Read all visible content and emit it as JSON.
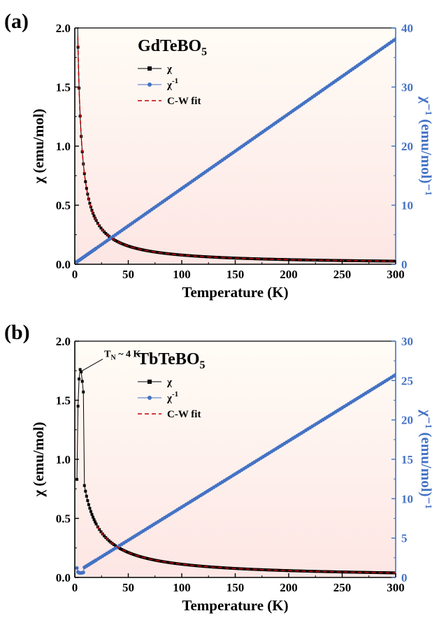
{
  "panels": [
    {
      "label": "(a)",
      "compound": {
        "base": "GdTeBO",
        "sub": "5"
      },
      "annotation": null,
      "chart_data": {
        "type": "scatter",
        "xlabel": "Temperature (K)",
        "ylabel_left": "χ  (emu/mol)",
        "ylabel_right": "χ⁻¹ (emu/mol)⁻¹",
        "xlim": [
          0,
          300
        ],
        "ylim_left": [
          0,
          2.0
        ],
        "ylim_right": [
          0,
          40
        ],
        "xticks": [
          0,
          50,
          100,
          150,
          200,
          250,
          300
        ],
        "yticks_left": [
          0.0,
          0.5,
          1.0,
          1.5,
          2.0
        ],
        "yticks_right": [
          0,
          10,
          20,
          30,
          40
        ],
        "legend": [
          {
            "label": "χ",
            "sup": "",
            "style": "black-square-line"
          },
          {
            "label": "χ",
            "sup": "-1",
            "style": "blue-circle-line"
          },
          {
            "label": "C-W fit",
            "sup": "",
            "style": "red-dash"
          }
        ],
        "series": [
          {
            "name": "χ",
            "axis": "left",
            "color": "#000000",
            "marker": "square",
            "model": {
              "form": "C/(T-θ)",
              "C": 7.9,
              "theta": -1.3
            },
            "t_start": 2,
            "t_end": 300
          },
          {
            "name": "χ⁻¹",
            "axis": "right",
            "color": "#4472C4",
            "marker": "circle",
            "model": {
              "form": "(T-θ)/C",
              "C": 7.9,
              "theta": -1.3
            },
            "t_start": 2,
            "t_end": 300
          },
          {
            "name": "C-W fit",
            "axis": "left",
            "color": "#C00000",
            "marker": "none",
            "model": {
              "form": "C/(T-θ)",
              "C": 7.9,
              "theta": -1.3
            },
            "t_start": 2.8,
            "t_end": 300
          }
        ]
      }
    },
    {
      "label": "(b)",
      "compound": {
        "base": "TbTeBO",
        "sub": "5"
      },
      "annotation": {
        "text": "T",
        "sub": "N",
        "rest": " ~ 4 K",
        "x": 4,
        "y": 1.76
      },
      "chart_data": {
        "type": "scatter",
        "xlabel": "Temperature (K)",
        "ylabel_left": "χ  (emu/mol)",
        "ylabel_right": "χ⁻¹ (emu/mol)⁻¹",
        "xlim": [
          0,
          300
        ],
        "ylim_left": [
          0,
          2.0
        ],
        "ylim_right": [
          0,
          30
        ],
        "xticks": [
          0,
          50,
          100,
          150,
          200,
          250,
          300
        ],
        "yticks_left": [
          0.0,
          0.5,
          1.0,
          1.5,
          2.0
        ],
        "yticks_right": [
          0,
          5,
          10,
          15,
          20,
          25,
          30
        ],
        "legend": [
          {
            "label": "χ",
            "sup": "",
            "style": "black-square-line"
          },
          {
            "label": "χ",
            "sup": "-1",
            "style": "blue-circle-line"
          },
          {
            "label": "C-W fit",
            "sup": "",
            "style": "red-dash"
          }
        ],
        "series": [
          {
            "name": "χ",
            "axis": "left",
            "color": "#000000",
            "marker": "square",
            "model": {
              "form": "C/(T-θ)",
              "C": 11.9,
              "theta": -6.3
            },
            "low_t_points": [
              [
                2,
                0.83
              ],
              [
                3,
                1.45
              ],
              [
                4,
                1.68
              ],
              [
                5,
                1.76
              ],
              [
                6,
                1.74
              ],
              [
                7,
                1.66
              ],
              [
                8,
                1.57
              ]
            ],
            "t_start": 9,
            "t_end": 300
          },
          {
            "name": "χ⁻¹",
            "axis": "right",
            "color": "#4472C4",
            "marker": "circle",
            "model": {
              "form": "(T-θ)/C",
              "C": 11.9,
              "theta": -6.3
            },
            "low_t_points": [
              [
                2,
                1.2
              ],
              [
                3,
                0.69
              ],
              [
                4,
                0.6
              ],
              [
                5,
                0.57
              ],
              [
                6,
                0.58
              ],
              [
                7,
                0.6
              ],
              [
                8,
                0.64
              ]
            ],
            "t_start": 9,
            "t_end": 300
          },
          {
            "name": "C-W fit",
            "axis": "left",
            "color": "#C00000",
            "marker": "none",
            "model": {
              "form": "C/(T-θ)",
              "C": 11.9,
              "theta": -6.3
            },
            "t_start": 21,
            "t_end": 300
          }
        ]
      }
    }
  ],
  "style": {
    "plot_bg_top": "#FFFCF6",
    "plot_bg_bottom": "#FDE6E4",
    "chi_color": "#000000",
    "inv_color": "#4472C4",
    "fit_color": "#C00000"
  }
}
